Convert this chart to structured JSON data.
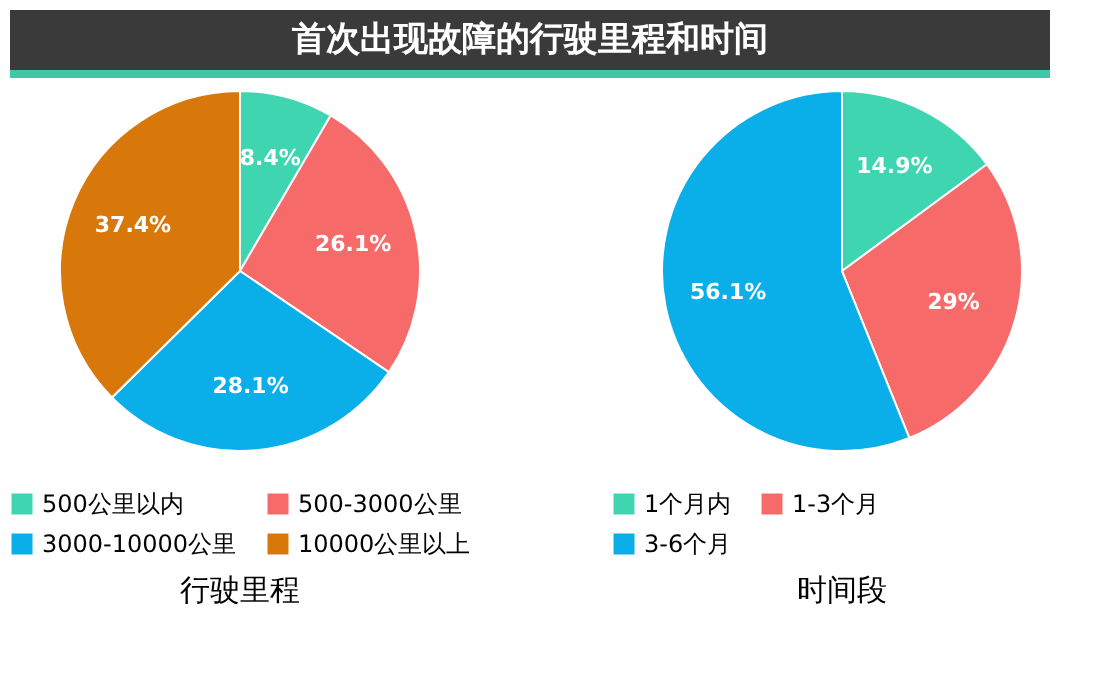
{
  "chart_data": [
    {
      "type": "other",
      "title": "首次出现故障的行驶里程和时间"
    },
    {
      "type": "pie",
      "title": "行驶里程",
      "categories": [
        "500公里以内",
        "500-3000公里",
        "3000-10000公里",
        "10000公里以上"
      ],
      "values": [
        8.4,
        26.1,
        28.1,
        37.4
      ],
      "colors": [
        "#3fd5b0",
        "#f76a6a",
        "#0aaee8",
        "#d9780a"
      ],
      "value_labels": [
        "8.4%",
        "26.1%",
        "28.1%",
        "37.4%"
      ],
      "legend": "bottom"
    },
    {
      "type": "pie",
      "title": "时间段",
      "categories": [
        "1个月内",
        "1-3个月",
        "3-6个月"
      ],
      "values": [
        14.9,
        29,
        56.1
      ],
      "colors": [
        "#3fd5b0",
        "#f76a6a",
        "#0aaee8"
      ],
      "value_labels": [
        "14.9%",
        "29%",
        "56.1%"
      ],
      "legend": "bottom"
    }
  ]
}
